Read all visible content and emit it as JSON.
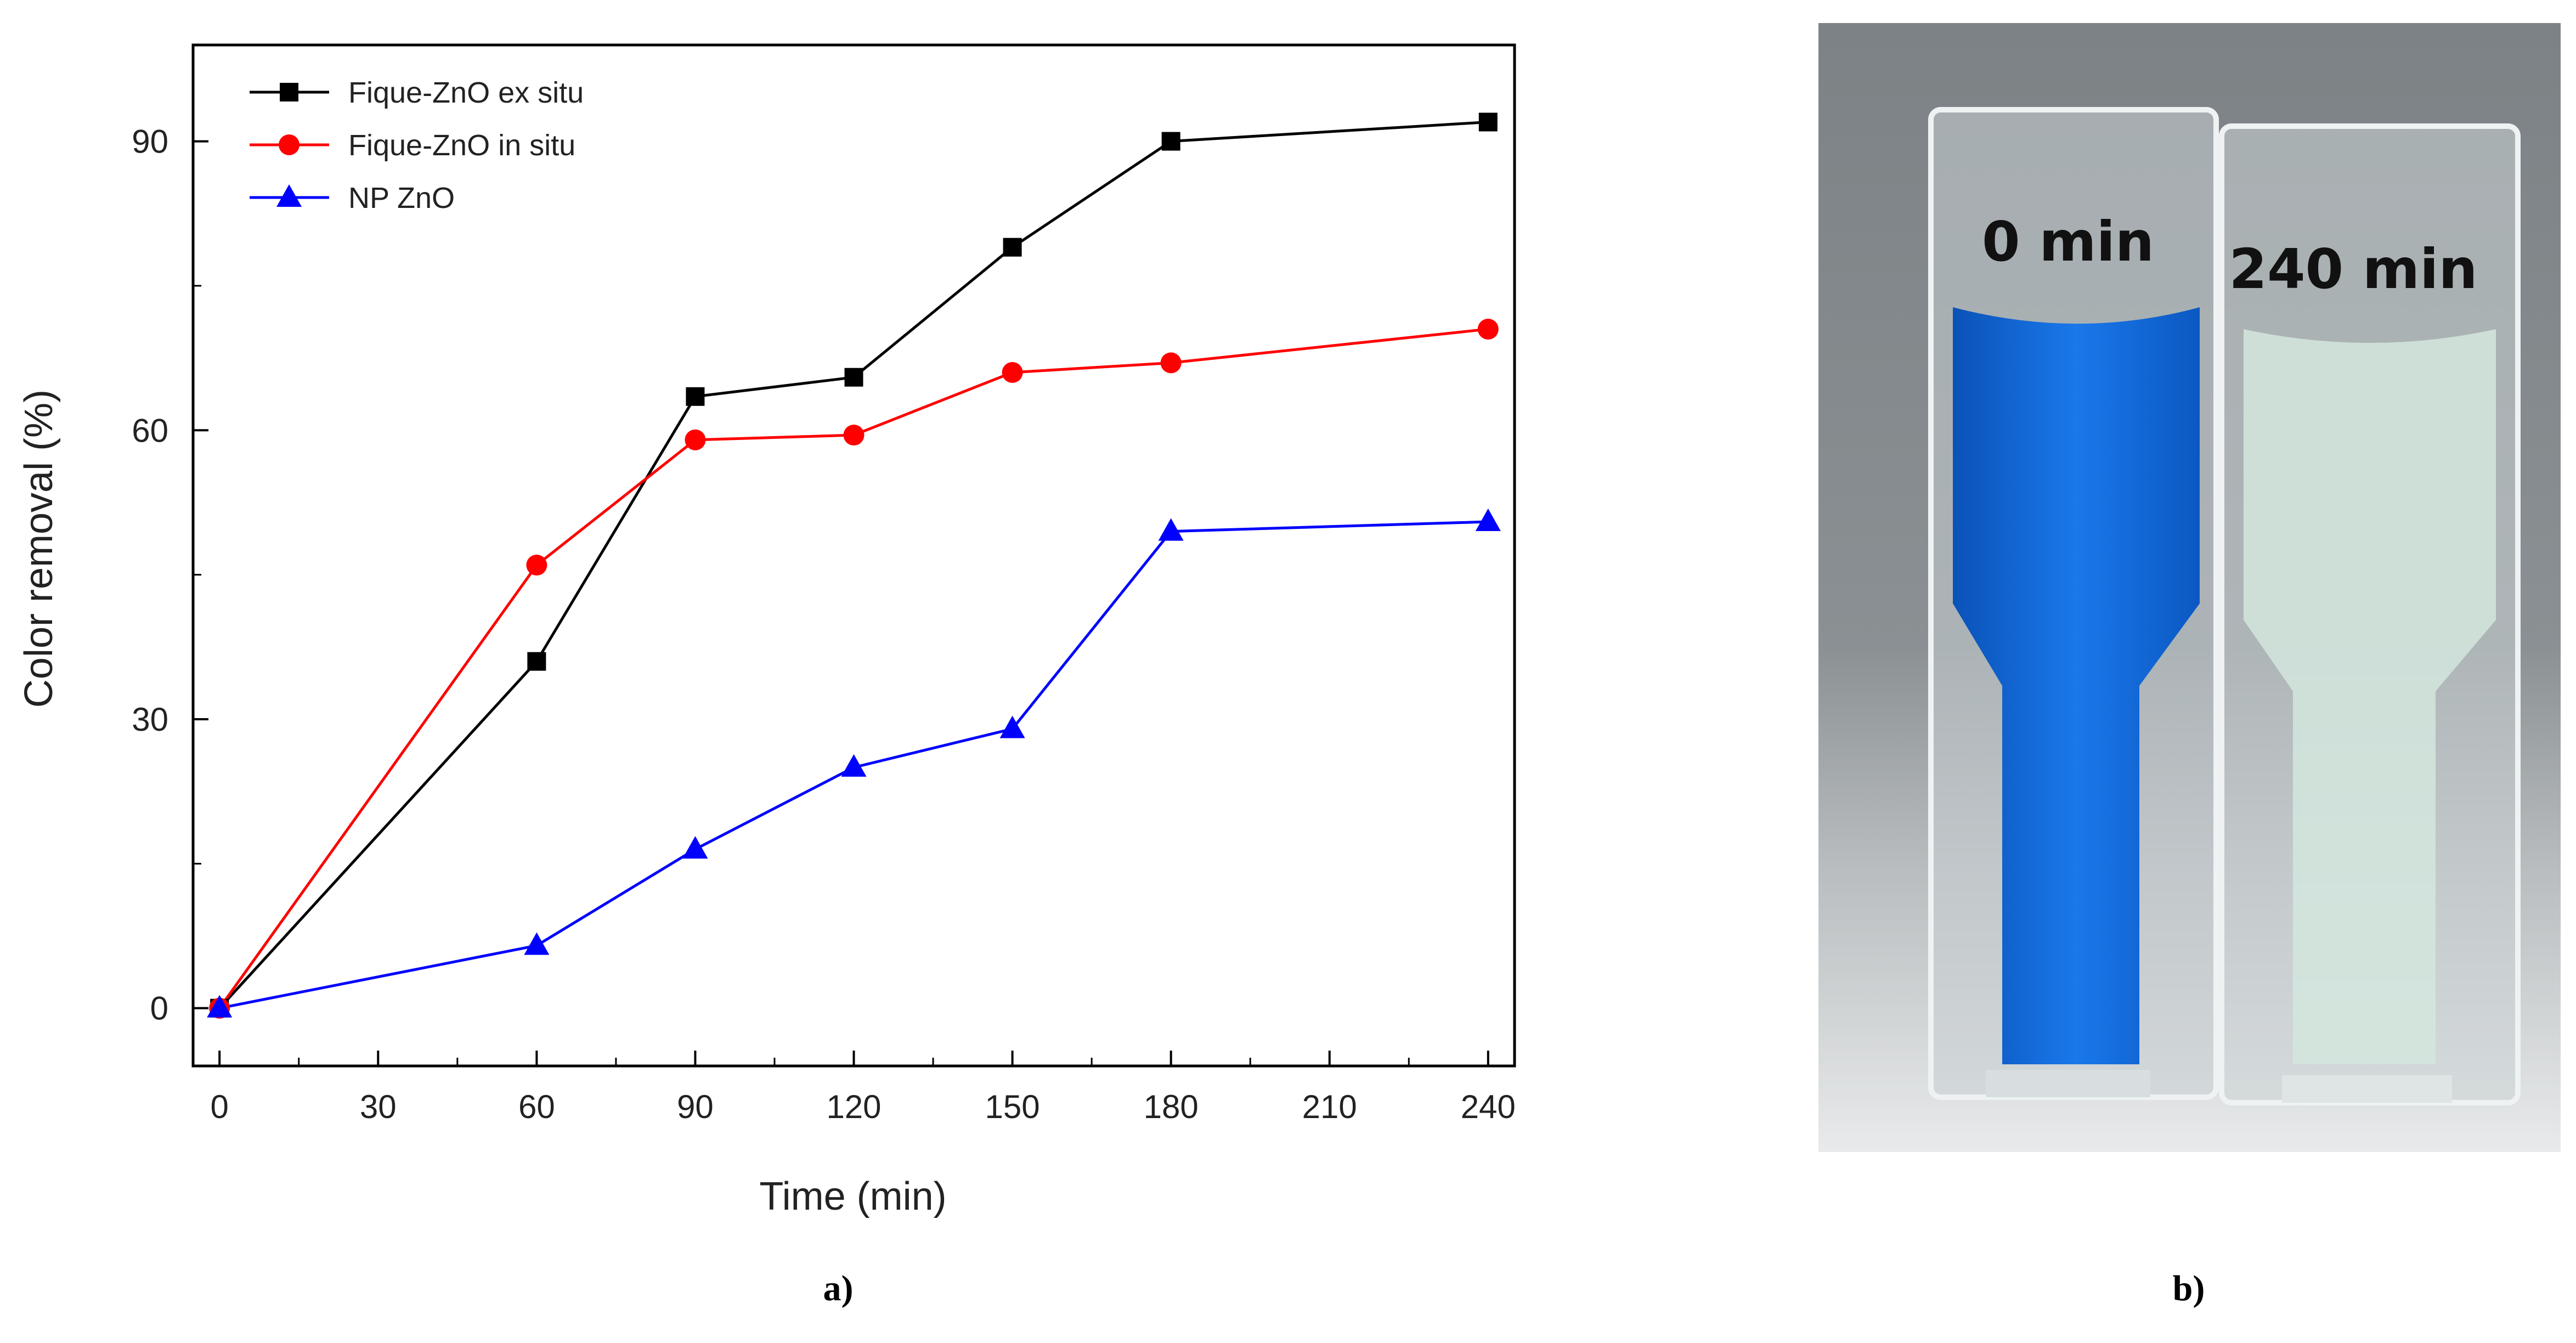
{
  "chart_data": {
    "type": "line",
    "xlabel": "Time (min)",
    "ylabel": "Color removal (%)",
    "xlim": [
      -5,
      245
    ],
    "ylim": [
      -6,
      100
    ],
    "xticks": [
      0,
      30,
      60,
      90,
      120,
      150,
      180,
      210,
      240
    ],
    "yticks": [
      0,
      30,
      60,
      90
    ],
    "legend_position": "top-left",
    "series": [
      {
        "name": "Fique-ZnO ex situ",
        "color": "#000000",
        "marker": "square",
        "x": [
          0,
          60,
          90,
          120,
          150,
          180,
          240
        ],
        "y": [
          0,
          36,
          63.5,
          65.5,
          79,
          90,
          92
        ]
      },
      {
        "name": "Fique-ZnO in situ",
        "color": "#ff0000",
        "marker": "circle",
        "x": [
          0,
          60,
          90,
          120,
          150,
          180,
          240
        ],
        "y": [
          0,
          46,
          59,
          59.5,
          66,
          67,
          70.5
        ]
      },
      {
        "name": "NP ZnO",
        "color": "#0000ff",
        "marker": "triangle",
        "x": [
          0,
          60,
          90,
          120,
          150,
          180,
          240
        ],
        "y": [
          0,
          6.5,
          16.5,
          25,
          29,
          49.5,
          50.5
        ]
      }
    ]
  },
  "panel_a_label": "a)",
  "panel_b_label": "b)",
  "photo": {
    "left_label": "0 min",
    "right_label": "240 min",
    "left_liquid_color": "#1670e0",
    "right_liquid_color": "#d4e6de"
  }
}
